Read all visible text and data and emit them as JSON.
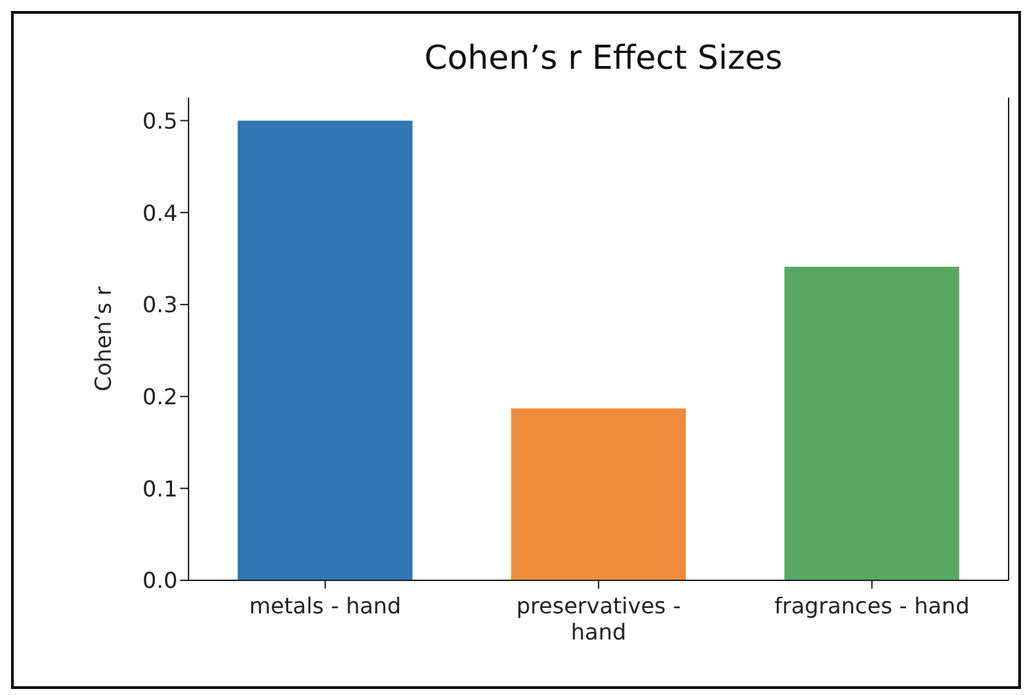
{
  "chart_data": {
    "type": "bar",
    "title": "Cohen’s r Effect Sizes",
    "ylabel": "Cohen’s r",
    "categories": [
      "metals - hand",
      "preservatives - hand",
      "fragrances - hand"
    ],
    "values": [
      0.5,
      0.187,
      0.341
    ],
    "colors": [
      "#2f75b1",
      "#ef8c3c",
      "#58a862"
    ],
    "ylim": [
      0,
      0.525
    ],
    "yticks": [
      {
        "value": 0,
        "label": "0.0"
      },
      {
        "value": 0.1,
        "label": "0.1"
      },
      {
        "value": 0.2,
        "label": "0.2"
      },
      {
        "value": 0.3,
        "label": "0.3"
      },
      {
        "value": 0.4,
        "label": "0.4"
      },
      {
        "value": 0.5,
        "label": "0.5"
      }
    ],
    "grid": false,
    "legend": false
  }
}
